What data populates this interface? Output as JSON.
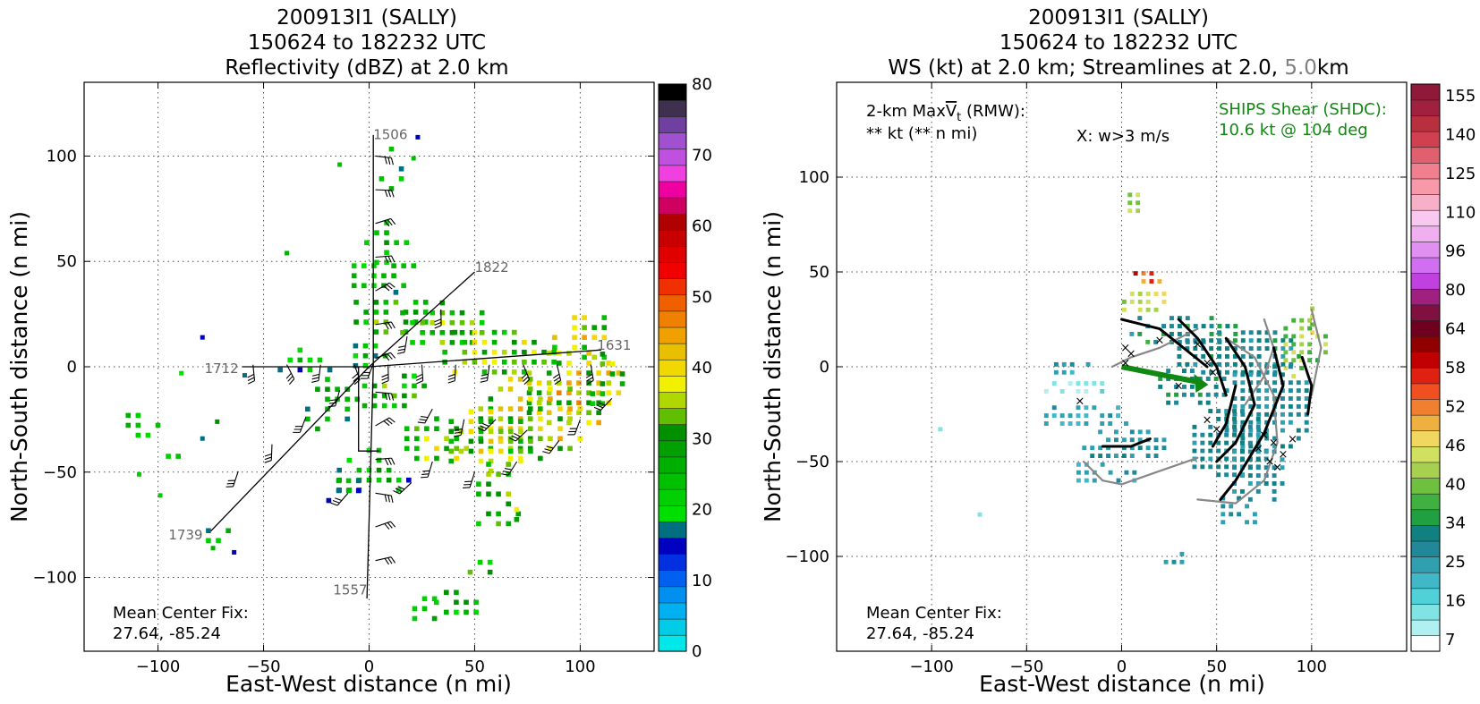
{
  "chart_data": [
    {
      "type": "heatmap",
      "panel": "left",
      "title_lines": [
        "200913I1 (SALLY)",
        "150624 to 182232 UTC",
        "Reflectivity (dBZ) at 2.0 km"
      ],
      "xlabel": "East-West distance (n mi)",
      "ylabel": "North-South distance (n mi)",
      "xlim": [
        -135,
        135
      ],
      "ylim": [
        -135,
        135
      ],
      "xticks": [
        -100,
        -50,
        0,
        50,
        100
      ],
      "yticks": [
        -100,
        -50,
        0,
        50,
        100
      ],
      "grid": true,
      "colorbar": {
        "label_ticks": [
          "0",
          "10",
          "20",
          "30",
          "40",
          "50",
          "60",
          "70",
          "80"
        ],
        "colors": [
          "#00e8e8",
          "#00cce8",
          "#00b0f0",
          "#0090f0",
          "#0060f0",
          "#0030e0",
          "#0000c0",
          "#007080",
          "#00e000",
          "#00d000",
          "#00c000",
          "#00b000",
          "#00a000",
          "#009000",
          "#60c000",
          "#b0d800",
          "#f0f000",
          "#f0d800",
          "#e8c000",
          "#f0a000",
          "#f08000",
          "#f06000",
          "#f03000",
          "#f00000",
          "#e00000",
          "#c80000",
          "#b00000",
          "#d00060",
          "#f000a0",
          "#f040e0",
          "#c050e0",
          "#a050d0",
          "#7040a0",
          "#403050",
          "#000000"
        ]
      },
      "flight_legs": [
        {
          "label": "1506",
          "x": 2,
          "y": 108
        },
        {
          "label": "1822",
          "x": 50,
          "y": 45
        },
        {
          "label": "1631",
          "x": 108,
          "y": 8
        },
        {
          "label": "1712",
          "x": -78,
          "y": -3
        },
        {
          "label": "1739",
          "x": -95,
          "y": -82
        },
        {
          "label": "1557",
          "x": -17,
          "y": -108
        }
      ],
      "annotation": [
        "Mean Center Fix:",
        "27.64, -85.24"
      ]
    },
    {
      "type": "heatmap",
      "panel": "right",
      "title_lines": [
        "200913I1 (SALLY)",
        "150624 to 182232 UTC"
      ],
      "title_line3": {
        "prefix": "WS (kt) at 2.0 km; Streamlines at 2.0, ",
        "grey": "5.0",
        "suffix": "km"
      },
      "xlabel": "East-West distance (n mi)",
      "ylabel": "North-South distance (n mi)",
      "xlim": [
        -150,
        150
      ],
      "ylim": [
        -150,
        150
      ],
      "xticks": [
        -100,
        -50,
        0,
        50,
        100
      ],
      "yticks": [
        -100,
        -50,
        0,
        50,
        100
      ],
      "grid": true,
      "colorbar": {
        "label_ticks": [
          "7",
          "16",
          "25",
          "34",
          "40",
          "46",
          "52",
          "58",
          "64",
          "80",
          "96",
          "110",
          "125",
          "140",
          "155"
        ],
        "colors": [
          "#ffffff",
          "#b0f0f0",
          "#80e4e4",
          "#50d0d8",
          "#40b8c8",
          "#30a0b0",
          "#208898",
          "#108080",
          "#20a040",
          "#40b040",
          "#70c040",
          "#a8d050",
          "#d0e060",
          "#f0d860",
          "#f0b040",
          "#f08030",
          "#f05020",
          "#e02010",
          "#c00000",
          "#900000",
          "#700020",
          "#801040",
          "#a02080",
          "#c040e0",
          "#d070f0",
          "#e090f0",
          "#f0b0f0",
          "#f8c8f0",
          "#f8b0c8",
          "#f898a8",
          "#f08090",
          "#e06070",
          "#d04050",
          "#b83040",
          "#a02040",
          "#901838"
        ]
      },
      "annotations": {
        "maxvt_line1_prefix": "2-km Max",
        "maxvt_symbol": "V",
        "maxvt_sub": "t",
        "maxvt_line1_suffix": " (RMW):",
        "maxvt_line2": "** kt (** n mi)",
        "xmark": "X: w>3 m/s",
        "shear_line1": "SHIPS Shear (SHDC):",
        "shear_line2": "10.6 kt @ 104 deg",
        "center_fix": [
          "Mean Center Fix:",
          "27.64, -85.24"
        ]
      }
    }
  ]
}
